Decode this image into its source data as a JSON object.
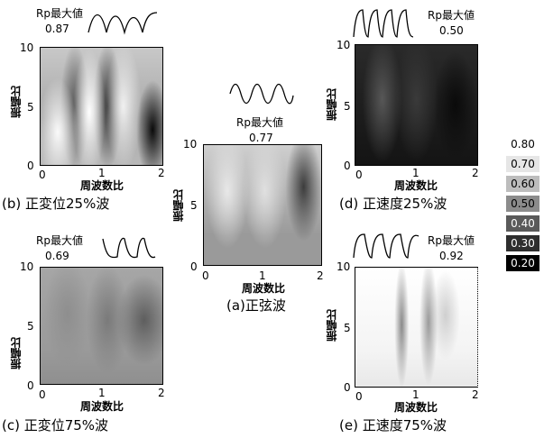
{
  "legend": [
    {
      "label": "0.80",
      "bg": "#ffffff",
      "fg": "#000000"
    },
    {
      "label": "0.70",
      "bg": "#e6e6e6",
      "fg": "#000000"
    },
    {
      "label": "0.60",
      "bg": "#bdbdbd",
      "fg": "#000000"
    },
    {
      "label": "0.50",
      "bg": "#8c8c8c",
      "fg": "#000000"
    },
    {
      "label": "0.40",
      "bg": "#5a5a5a",
      "fg": "#ffffff"
    },
    {
      "label": "0.30",
      "bg": "#2e2e2e",
      "fg": "#ffffff"
    },
    {
      "label": "0.20",
      "bg": "#000000",
      "fg": "#ffffff"
    }
  ],
  "common": {
    "rp_label": "Rp最大値",
    "xlabel": "周波数比",
    "ylabel": "振幅比",
    "x_ticks": [
      "0",
      "1",
      "2"
    ],
    "y_ticks": [
      "0",
      "5",
      "10"
    ]
  },
  "chart_data": [
    {
      "id": "a",
      "type": "heatmap",
      "caption": "(a)正弦波",
      "rp_max": "0.77",
      "xlim": [
        0,
        2
      ],
      "ylim": [
        0,
        10
      ],
      "waveform": "sine"
    },
    {
      "id": "b",
      "type": "heatmap",
      "caption": "(b) 正変位25%波",
      "rp_max": "0.87",
      "xlim": [
        0,
        2
      ],
      "ylim": [
        0,
        10
      ],
      "waveform": "displacement-25"
    },
    {
      "id": "c",
      "type": "heatmap",
      "caption": "(c) 正変位75%波",
      "rp_max": "0.69",
      "xlim": [
        0,
        2
      ],
      "ylim": [
        0,
        10
      ],
      "waveform": "displacement-75"
    },
    {
      "id": "d",
      "type": "heatmap",
      "caption": "(d) 正速度25%波",
      "rp_max": "0.50",
      "xlim": [
        0,
        2
      ],
      "ylim": [
        0,
        10
      ],
      "waveform": "velocity-25"
    },
    {
      "id": "e",
      "type": "heatmap",
      "caption": "(e) 正速度75%波",
      "rp_max": "0.92",
      "xlim": [
        0,
        2
      ],
      "ylim": [
        0,
        10
      ],
      "waveform": "velocity-75"
    }
  ]
}
